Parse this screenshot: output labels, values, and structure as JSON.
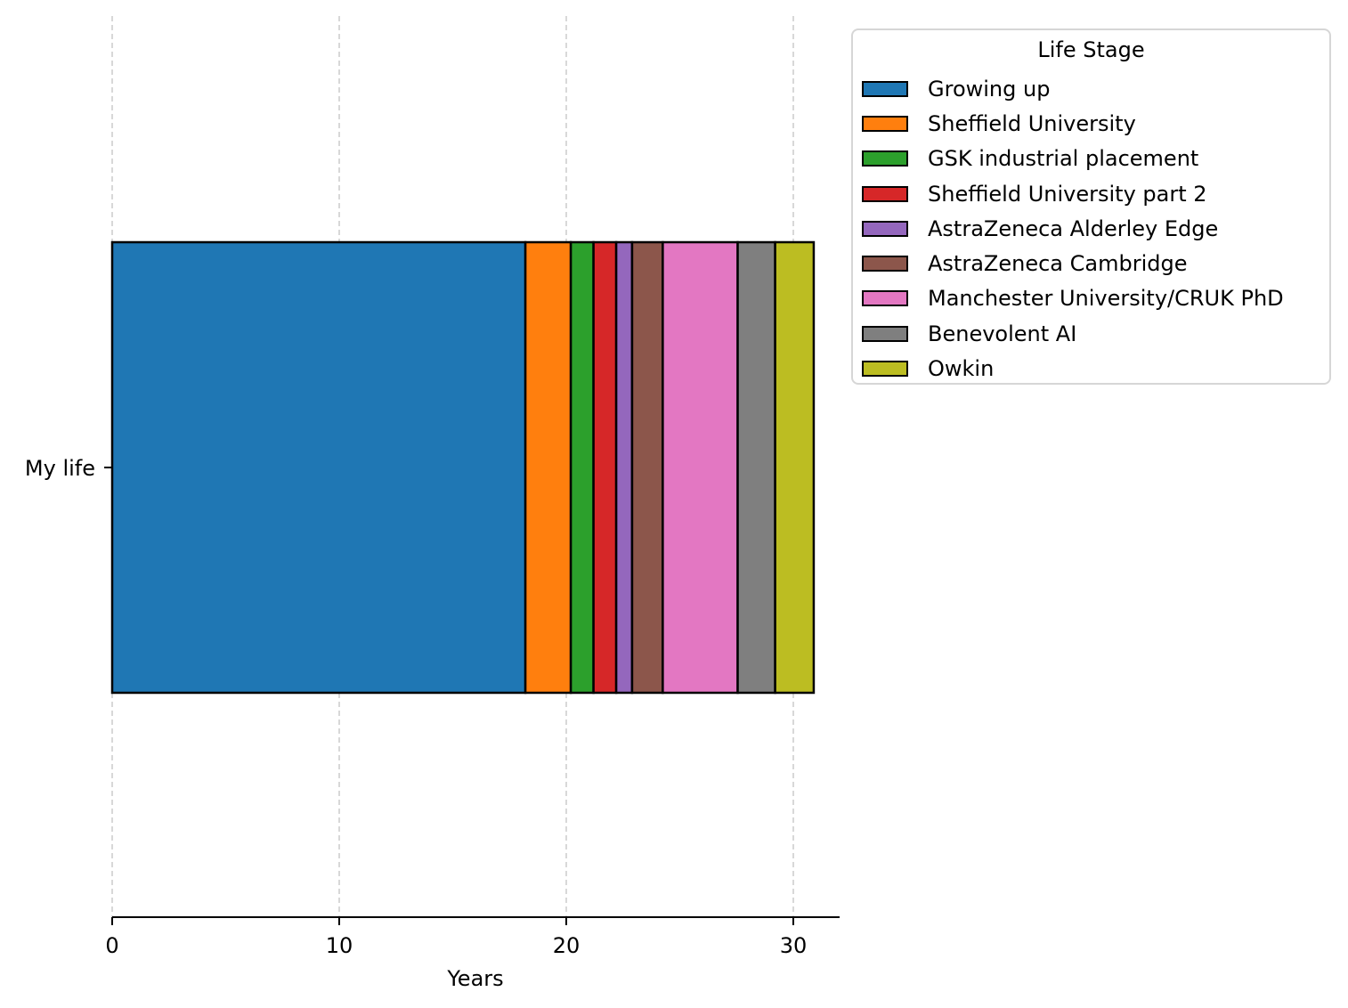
{
  "chart_data": {
    "type": "bar",
    "orientation": "horizontal-stacked",
    "categories": [
      "My life"
    ],
    "series": [
      {
        "name": "Growing up",
        "start": 0,
        "duration": 18.2,
        "color": "#1f77b4"
      },
      {
        "name": "Sheffield University",
        "start": 18.2,
        "duration": 2.0,
        "color": "#ff7f0e"
      },
      {
        "name": "GSK industrial placement",
        "start": 20.2,
        "duration": 1.0,
        "color": "#2ca02c"
      },
      {
        "name": "Sheffield University part 2",
        "start": 21.2,
        "duration": 1.0,
        "color": "#d62728"
      },
      {
        "name": "AstraZeneca Alderley Edge",
        "start": 22.2,
        "duration": 0.7,
        "color": "#9467bd"
      },
      {
        "name": "AstraZeneca Cambridge",
        "start": 22.9,
        "duration": 1.35,
        "color": "#8c564b"
      },
      {
        "name": "Manchester University/CRUK PhD",
        "start": 24.25,
        "duration": 3.3,
        "color": "#e377c2"
      },
      {
        "name": "Benevolent AI",
        "start": 27.55,
        "duration": 1.65,
        "color": "#7f7f7f"
      },
      {
        "name": "Owkin",
        "start": 29.2,
        "duration": 1.7,
        "color": "#bcbd22"
      }
    ],
    "title": "",
    "xlabel": "Years",
    "ylabel": "",
    "xlim": [
      0,
      32
    ],
    "xticks": [
      0,
      10,
      20,
      30
    ],
    "grid": "x-dashed",
    "legend": {
      "title": "Life Stage",
      "placement": "outside-top-right"
    }
  }
}
